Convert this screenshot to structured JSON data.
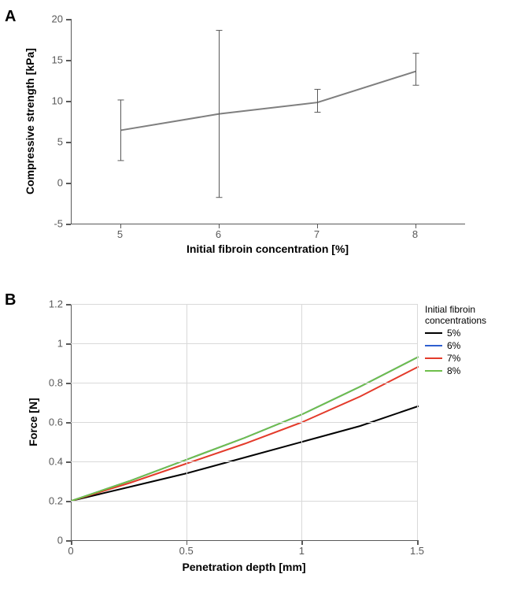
{
  "panelA": {
    "label": "A",
    "type": "line",
    "title": "",
    "xlabel": "Initial fibroin concentration [%]",
    "ylabel": "Compressive strength [kPa]",
    "label_fontsize": 14,
    "tick_fontsize": 13,
    "xlim": [
      4.5,
      8.5
    ],
    "ylim": [
      -5,
      20
    ],
    "ytick_step": 5,
    "yticks": [
      -5,
      0,
      5,
      10,
      15,
      20
    ],
    "xticks": [
      5,
      6,
      7,
      8
    ],
    "categories": [
      5,
      6,
      7,
      8
    ],
    "values": [
      6.4,
      8.4,
      9.8,
      13.6
    ],
    "err_low": [
      3.7,
      10.2,
      1.2,
      1.7
    ],
    "err_high": [
      3.7,
      10.2,
      1.6,
      2.2
    ],
    "line_color": "#7f7f7f",
    "line_width": 2,
    "error_color": "#595959",
    "error_width": 1,
    "error_cap": 8,
    "background_color": "#ffffff",
    "grid": false,
    "axis_color": "#595959"
  },
  "panelB": {
    "label": "B",
    "type": "line",
    "title": "",
    "xlabel": "Penetration depth [mm]",
    "ylabel": "Force [N]",
    "label_fontsize": 14,
    "tick_fontsize": 13,
    "xlim": [
      0,
      1.5
    ],
    "ylim": [
      0,
      1.2
    ],
    "xticks": [
      0,
      0.5,
      1,
      1.5
    ],
    "yticks": [
      0,
      0.2,
      0.4,
      0.6,
      0.8,
      1,
      1.2
    ],
    "background_color": "#ffffff",
    "grid": true,
    "grid_color": "#d9d9d9",
    "axis_color": "#595959",
    "legend_title": "Initial fibroin concentrations",
    "series": [
      {
        "name": "5%",
        "color": "#000000",
        "width": 2,
        "x": [
          0,
          0.25,
          0.5,
          0.75,
          1.0,
          1.25,
          1.5
        ],
        "y": [
          0.2,
          0.27,
          0.34,
          0.42,
          0.5,
          0.58,
          0.68
        ]
      },
      {
        "name": "6%",
        "color": "#2f5fd0",
        "width": 2,
        "x": [
          0,
          0.25,
          0.5,
          0.75,
          1.0,
          1.25,
          1.5
        ],
        "y": [
          0.2,
          0.3,
          0.41,
          0.52,
          0.64,
          0.78,
          0.93
        ]
      },
      {
        "name": "7%",
        "color": "#e33b2b",
        "width": 2,
        "x": [
          0,
          0.25,
          0.5,
          0.75,
          1.0,
          1.25,
          1.5
        ],
        "y": [
          0.2,
          0.29,
          0.39,
          0.49,
          0.6,
          0.73,
          0.88
        ]
      },
      {
        "name": "8%",
        "color": "#6fbf4b",
        "width": 2,
        "x": [
          0,
          0.25,
          0.5,
          0.75,
          1.0,
          1.25,
          1.5
        ],
        "y": [
          0.2,
          0.3,
          0.41,
          0.52,
          0.64,
          0.78,
          0.93
        ]
      }
    ]
  }
}
